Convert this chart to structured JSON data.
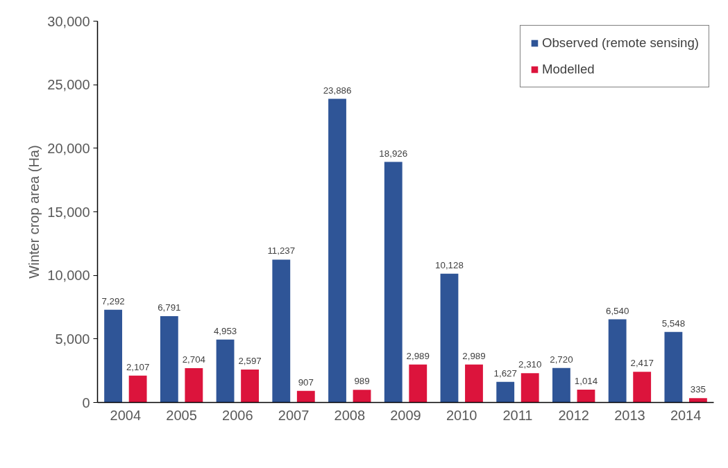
{
  "chart_data": {
    "type": "bar",
    "ylabel": "Winter crop area (Ha)",
    "categories": [
      "2004",
      "2005",
      "2006",
      "2007",
      "2008",
      "2009",
      "2010",
      "2011",
      "2012",
      "2013",
      "2014"
    ],
    "series": [
      {
        "name": "Observed (remote sensing)",
        "color": "#2f5597",
        "values": [
          7292,
          6791,
          4953,
          11237,
          23886,
          18926,
          10128,
          1627,
          2720,
          6540,
          5548
        ],
        "value_labels": [
          "7,292",
          "6,791",
          "4,953",
          "11,237",
          "23,886",
          "18,926",
          "10,128",
          "1,627",
          "2,720",
          "6,540",
          "5,548"
        ]
      },
      {
        "name": "Modelled",
        "color": "#dc143c",
        "values": [
          2107,
          2704,
          2597,
          907,
          989,
          2989,
          2989,
          2310,
          1014,
          2417,
          335
        ],
        "value_labels": [
          "2,107",
          "2,704",
          "2,597",
          "907",
          "989",
          "2,989",
          "2,989",
          "2,310",
          "1,014",
          "2,417",
          "335"
        ]
      }
    ],
    "ylim": [
      0,
      30000
    ],
    "yticks": [
      {
        "value": 0,
        "label": "0"
      },
      {
        "value": 5000,
        "label": "5,000"
      },
      {
        "value": 10000,
        "label": "10,000"
      },
      {
        "value": 15000,
        "label": "15,000"
      },
      {
        "value": 20000,
        "label": "20,000"
      },
      {
        "value": 25000,
        "label": "25,000"
      },
      {
        "value": 30000,
        "label": "30,000"
      }
    ],
    "legend": "top right"
  }
}
